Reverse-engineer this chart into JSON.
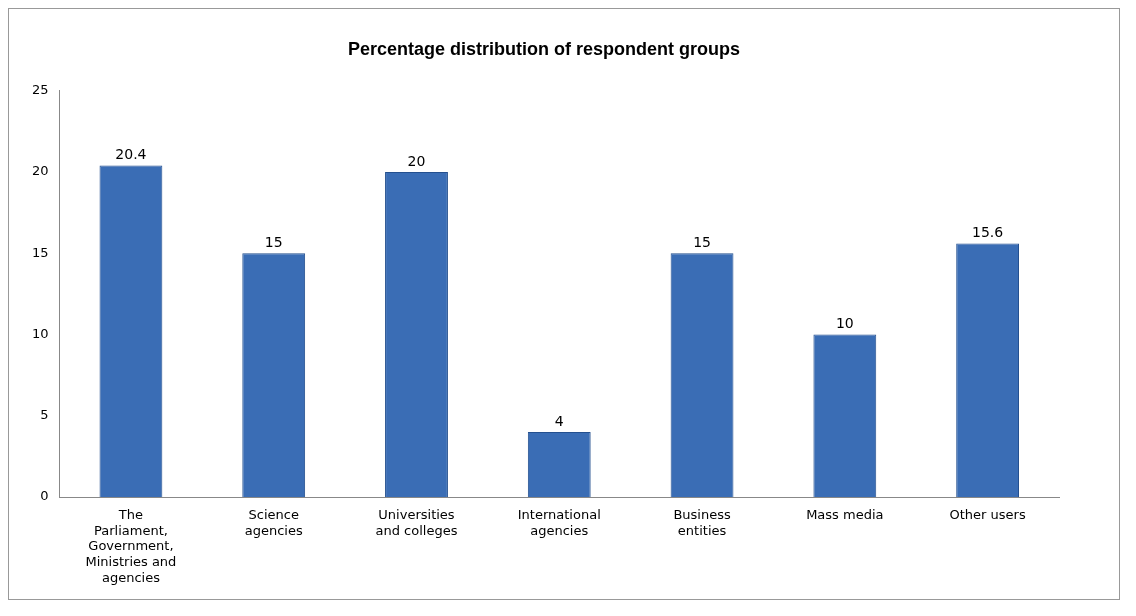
{
  "chart_data": {
    "type": "bar",
    "title": "Percentage distribution of respondent groups",
    "categories": [
      "The Parliament, Government, Ministries and agencies",
      "Science agencies",
      "Universities and colleges",
      "International agencies",
      "Business entities",
      "Mass media",
      "Other users"
    ],
    "values": [
      20.4,
      15,
      20,
      4,
      15,
      10,
      15.6
    ],
    "color": "#3a6db5",
    "ylim": [
      0,
      25
    ],
    "yticks": [
      0,
      5,
      10,
      15,
      20,
      25
    ],
    "grid": false,
    "legend": false,
    "data_labels": true
  }
}
